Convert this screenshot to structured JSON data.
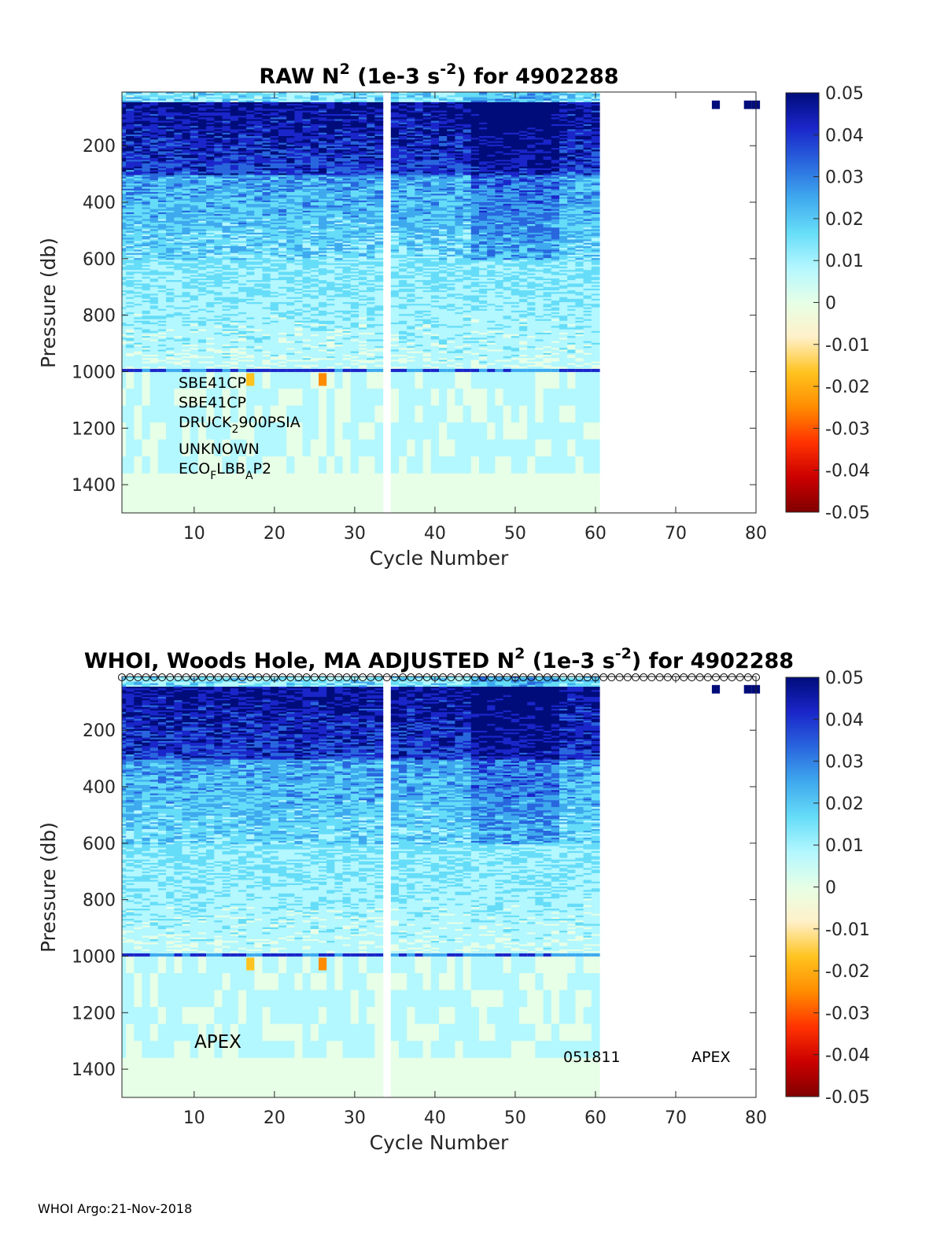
{
  "footer": "WHOI Argo:21-Nov-2018",
  "colors": {
    "scale": [
      "#800000",
      "#cc0000",
      "#ff3300",
      "#ff8c00",
      "#ffc31f",
      "#fff0c8",
      "#e6ffe6",
      "#b3f7ff",
      "#66ddf8",
      "#3fa9ee",
      "#2966de",
      "#1a26c9",
      "#000c7a"
    ]
  },
  "chart_data": [
    {
      "type": "heatmap",
      "id": "raw",
      "title_prefix": "RAW N",
      "title_sup1": "2",
      "title_mid": " (1e-3 s",
      "title_sup2": "-2",
      "title_suffix": ") for 4902288",
      "xlabel": "Cycle Number",
      "ylabel": "Pressure (db)",
      "xlim": [
        1,
        80
      ],
      "ylim": [
        1500,
        10
      ],
      "xticks": [
        "10",
        "20",
        "30",
        "40",
        "50",
        "60",
        "70",
        "80"
      ],
      "yticks": [
        "200",
        "400",
        "600",
        "800",
        "1000",
        "1200",
        "1400"
      ],
      "clim": [
        -0.05,
        0.05
      ],
      "cticks": [
        "0.05",
        "0.04",
        "0.03",
        "0.02",
        "0.01",
        "0",
        "-0.01",
        "-0.02",
        "-0.03",
        "-0.04",
        "-0.05"
      ],
      "data_cycles": [
        1,
        60
      ],
      "gap_cycle": 34,
      "late_cycles": [
        75,
        79,
        80
      ],
      "sensors": {
        "s1": "SBE41CP",
        "s2": "SBE41CP",
        "s3_pre": "DRUCK",
        "s3_sub": "2",
        "s3_post": "900PSIA",
        "s4": "UNKNOWN",
        "s5_pre": "ECO",
        "s5_sub1": "F",
        "s5_mid": "LBB",
        "s5_sub2": "A",
        "s5_post": "P2"
      }
    },
    {
      "type": "heatmap",
      "id": "adjusted",
      "title_prefix": "WHOI, Woods Hole, MA  ADJUSTED N",
      "title_sup1": "2",
      "title_mid": " (1e-3 s",
      "title_sup2": "-2",
      "title_suffix": ") for 4902288",
      "xlabel": "Cycle Number",
      "ylabel": "Pressure (db)",
      "xlim": [
        1,
        80
      ],
      "ylim": [
        1500,
        10
      ],
      "xticks": [
        "10",
        "20",
        "30",
        "40",
        "50",
        "60",
        "70",
        "80"
      ],
      "yticks": [
        "200",
        "400",
        "600",
        "800",
        "1000",
        "1200",
        "1400"
      ],
      "clim": [
        -0.05,
        0.05
      ],
      "cticks": [
        "0.05",
        "0.04",
        "0.03",
        "0.02",
        "0.01",
        "0",
        "-0.01",
        "-0.02",
        "-0.03",
        "-0.04",
        "-0.05"
      ],
      "qc_markers": "open circles at top for every cycle",
      "annotations": {
        "left_platform": "APEX",
        "firmware": "051811",
        "right_platform": "APEX"
      }
    }
  ]
}
